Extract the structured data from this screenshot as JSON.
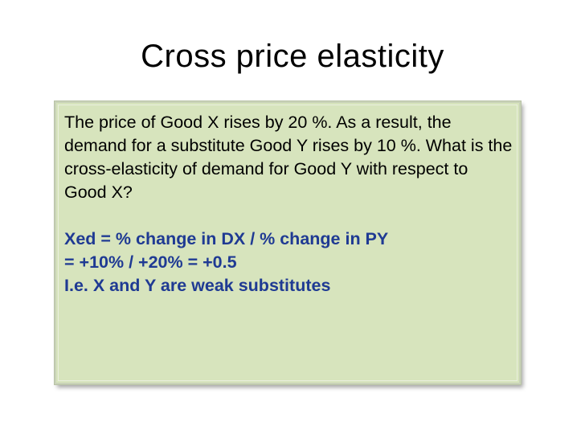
{
  "slide": {
    "title": "Cross price elasticity",
    "question": "The price of Good X rises by 20 %. As a result, the demand for a substitute Good Y rises by 10 %. What is the cross-elasticity of demand for Good Y with respect to Good X?",
    "answer_lines": [
      "Xed = % change in DX / % change in PY",
      "= +10% / +20% = +0.5",
      "I.e. X and Y are weak substitutes"
    ]
  },
  "colors": {
    "box_background": "#d7e4bd",
    "answer_text": "#1f3a93",
    "question_text": "#000000"
  }
}
